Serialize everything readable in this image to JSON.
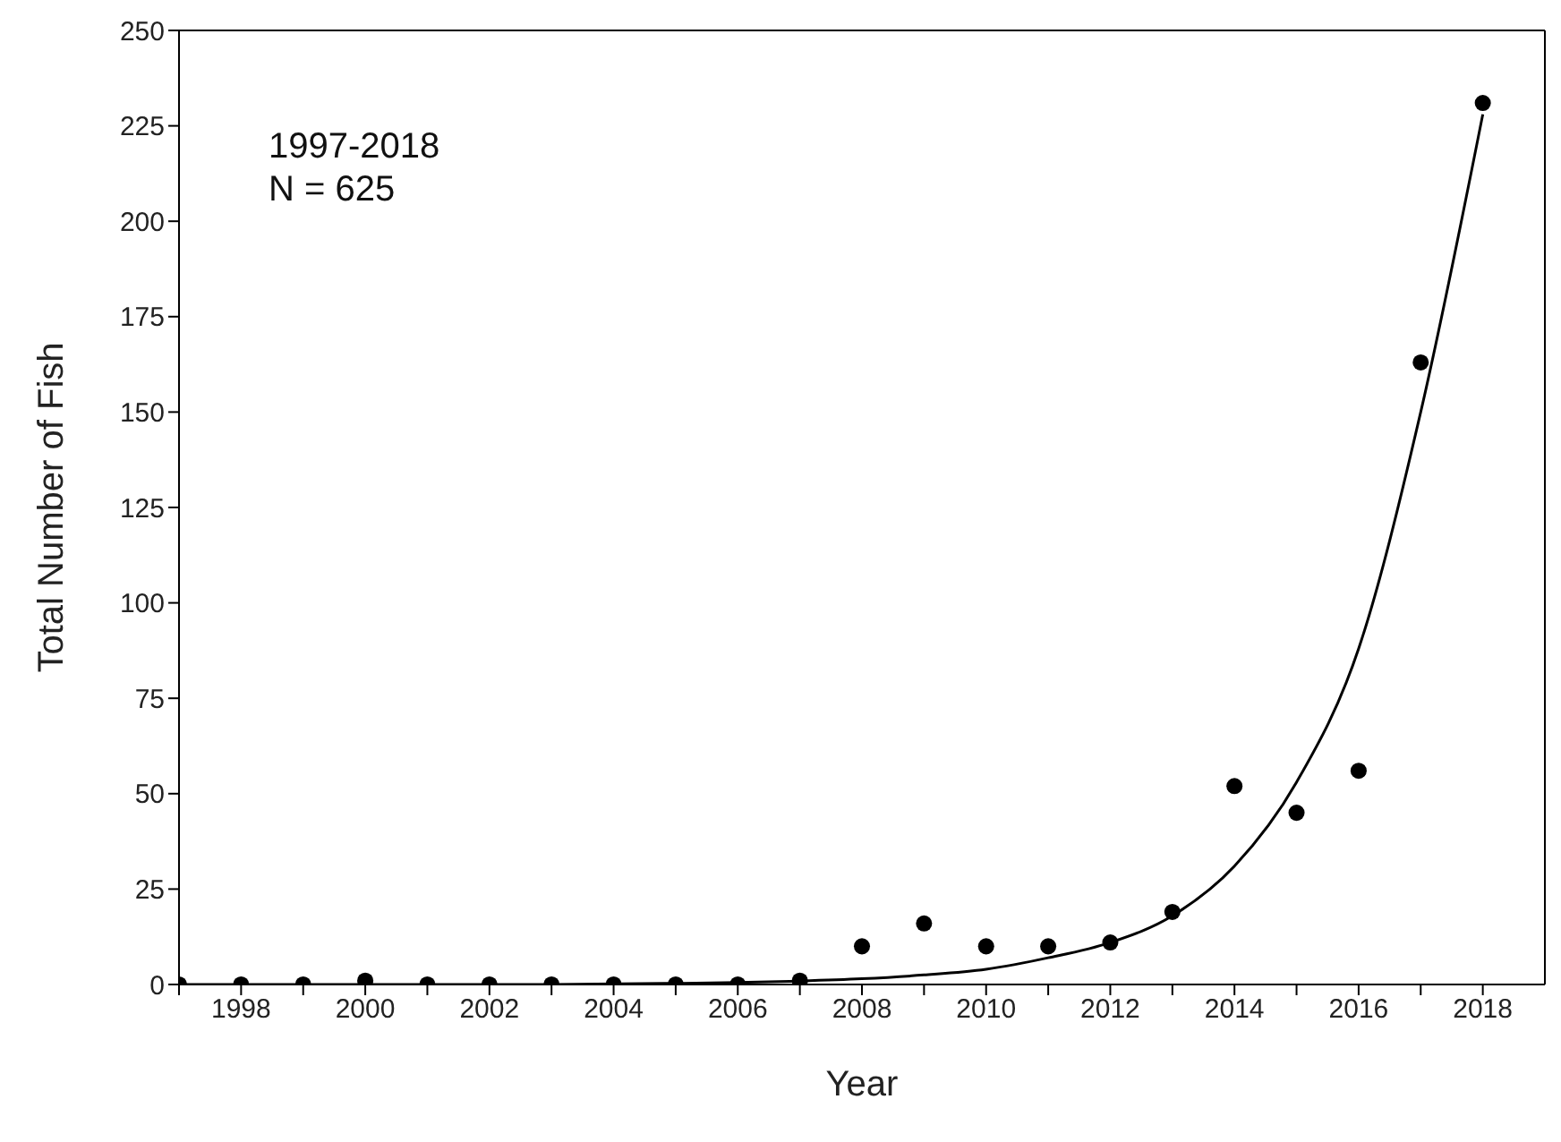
{
  "chart_data": {
    "type": "scatter",
    "xlabel": "Year",
    "ylabel": "Total Number of Fish",
    "annotations": [
      "1997-2018",
      "N = 625"
    ],
    "xlim": [
      1997,
      2019
    ],
    "xticks": [
      {
        "value": 1997,
        "label": null
      },
      1998,
      {
        "value": 1999,
        "label": null
      },
      2000,
      {
        "value": 2001,
        "label": null
      },
      2002,
      {
        "value": 2003,
        "label": null
      },
      2004,
      {
        "value": 2005,
        "label": null
      },
      2006,
      {
        "value": 2007,
        "label": null
      },
      2008,
      {
        "value": 2009,
        "label": null
      },
      2010,
      {
        "value": 2011,
        "label": null
      },
      2012,
      {
        "value": 2013,
        "label": null
      },
      2014,
      {
        "value": 2015,
        "label": null
      },
      2016,
      {
        "value": 2017,
        "label": null
      },
      2018
    ],
    "ylim": [
      0,
      250
    ],
    "yticks": [
      0,
      25,
      50,
      75,
      100,
      125,
      150,
      175,
      200,
      225,
      250
    ],
    "series": [
      {
        "marker": "circle",
        "color": "#000000",
        "x": [
          1997,
          1998,
          1999,
          2000,
          2001,
          2002,
          2003,
          2004,
          2005,
          2006,
          2007,
          2008,
          2009,
          2010,
          2011,
          2012,
          2013,
          2014,
          2015,
          2016,
          2017,
          2018
        ],
        "values": [
          0,
          0,
          0,
          1,
          0,
          0,
          0,
          0,
          0,
          0,
          1,
          10,
          16,
          10,
          10,
          11,
          19,
          52,
          45,
          56,
          163,
          231
        ]
      },
      {
        "type": "line",
        "color": "#000000",
        "line_style": "solid",
        "x": [
          1997,
          2000,
          2003,
          2005,
          2006,
          2007,
          2008,
          2009,
          2010,
          2011,
          2012,
          2013,
          2014,
          2015,
          2016,
          2017,
          2018
        ],
        "values": [
          0,
          0,
          0,
          0.3,
          0.5,
          0.9,
          1.5,
          2.5,
          4,
          7,
          11,
          18,
          31,
          53,
          88,
          150,
          228
        ]
      }
    ]
  }
}
